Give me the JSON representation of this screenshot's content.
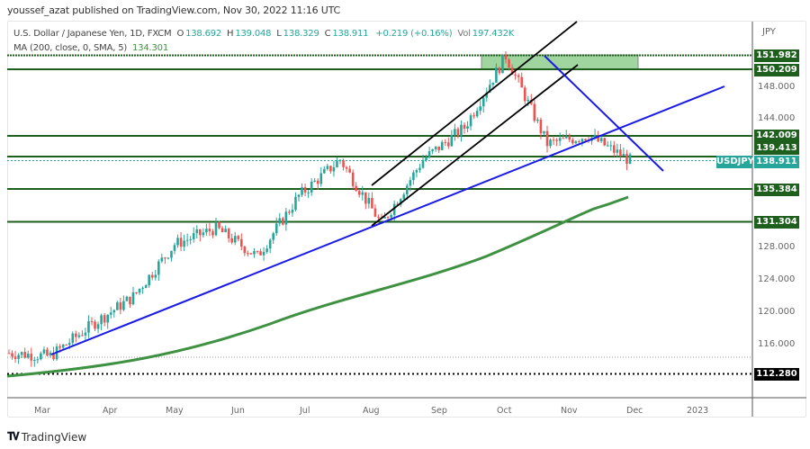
{
  "publisher_line": "youssef_azat published on TradingView.com, Nov 30, 2022 11:16 UTC",
  "legend": {
    "symbol": "U.S. Dollar / Japanese Yen, 1D, FXCM",
    "open_label": "O",
    "open": "138.692",
    "high_label": "H",
    "high": "139.048",
    "low_label": "L",
    "low": "138.329",
    "close_label": "C",
    "close": "138.911",
    "change": "+0.219 (+0.16%)",
    "vol_label": "Vol",
    "vol": "197.432K",
    "ma_label": "MA (200, close, 0, SMA, 5)",
    "ma_value": "134.301"
  },
  "price_axis": {
    "currency": "JPY",
    "ticks": [
      "148.000",
      "144.000",
      "128.000",
      "124.000",
      "120.000",
      "116.000"
    ],
    "level_labels": [
      "151.982",
      "150.209",
      "142.009",
      "139.413",
      "135.384",
      "131.304"
    ],
    "current_symbol": "USDJPY",
    "current_price": "138.911",
    "dotted_level": "112.280"
  },
  "time_axis": {
    "labels": [
      "Mar",
      "Apr",
      "May",
      "Jun",
      "Jul",
      "Aug",
      "Sep",
      "Oct",
      "Nov",
      "Dec",
      "2023"
    ]
  },
  "footer": {
    "brand": "TradingView"
  },
  "colors": {
    "up": "#26a69a",
    "down": "#ef5350",
    "level": "#1e5f1e",
    "ma": "#3d9140",
    "trend": "#1a1ae6",
    "channel": "#000000",
    "zone": "#8fce8f",
    "current": "#26a69a"
  },
  "chart_data": {
    "type": "candlestick",
    "title": "U.S. Dollar / Japanese Yen, 1D, FXCM",
    "xlabel": "",
    "ylabel": "JPY",
    "ylim": [
      111,
      155
    ],
    "x": [
      "Mar",
      "Apr",
      "May",
      "Jun",
      "Jul",
      "Aug",
      "Sep",
      "Oct",
      "Nov",
      "Dec",
      "2023"
    ],
    "approx_close_path": [
      {
        "date": "Mar 1",
        "close": 115.0
      },
      {
        "date": "Mar 8",
        "close": 114.6
      },
      {
        "date": "Mar 15",
        "close": 118.5
      },
      {
        "date": "Mar 31",
        "close": 122.0
      },
      {
        "date": "Apr 20",
        "close": 128.5
      },
      {
        "date": "Apr 28",
        "close": 130.5
      },
      {
        "date": "May 24",
        "close": 127.0
      },
      {
        "date": "Jun 15",
        "close": 134.5
      },
      {
        "date": "Jul 14",
        "close": 139.0
      },
      {
        "date": "Aug 2",
        "close": 131.0
      },
      {
        "date": "Aug 31",
        "close": 139.0
      },
      {
        "date": "Sep 22",
        "close": 143.0
      },
      {
        "date": "Oct 21",
        "close": 151.9
      },
      {
        "date": "Nov 10",
        "close": 141.0
      },
      {
        "date": "Nov 21",
        "close": 142.0
      },
      {
        "date": "Nov 30",
        "close": 138.911
      }
    ],
    "series": [
      {
        "name": "MA 200 SMA",
        "last": 134.301,
        "values_approx": [
          {
            "date": "Mar",
            "v": 112.0
          },
          {
            "date": "Jun",
            "v": 115.0
          },
          {
            "date": "Aug",
            "v": 120.0
          },
          {
            "date": "Oct",
            "v": 127.5
          },
          {
            "date": "Nov",
            "v": 132.0
          },
          {
            "date": "Dec",
            "v": 134.3
          }
        ]
      }
    ],
    "horizontal_levels": [
      151.982,
      150.209,
      142.009,
      139.413,
      135.384,
      131.304
    ],
    "dotted_level": 112.28,
    "current_price": 138.911,
    "annotations": [
      "Green supply zone 150.209-151.982 (mid Sep to mid Nov)",
      "Blue rising trendline from early Mar low through Aug low",
      "Blue descending trendline from Oct high",
      "Black ascending channel Aug-Oct"
    ]
  }
}
